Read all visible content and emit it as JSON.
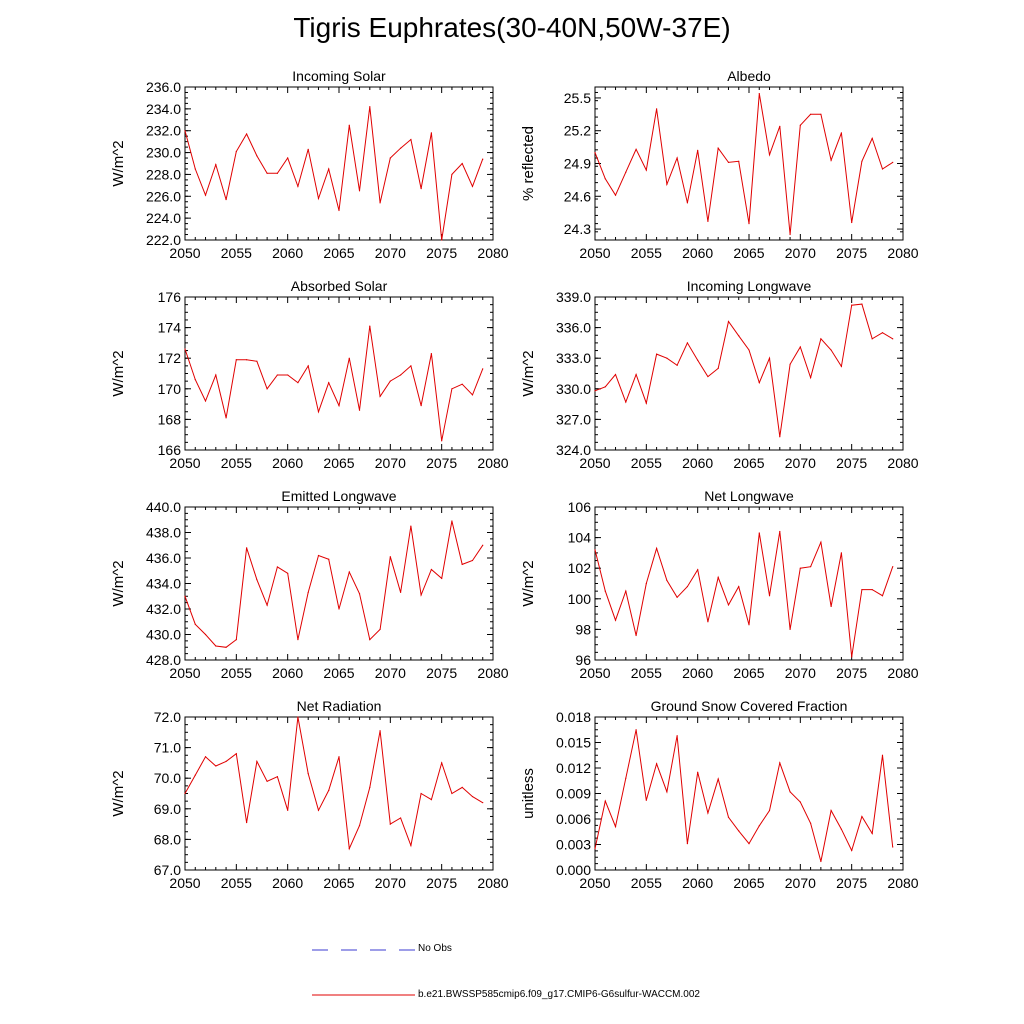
{
  "title": "Tigris Euphrates(30-40N,50W-37E)",
  "legend": {
    "obs_label": "No Obs",
    "obs_color": "#3b3bd0",
    "model_label": "b.e21.BWSSP585cmip6.f09_g17.CMIP6-G6sulfur-WACCM.002",
    "model_color": "#e00000"
  },
  "chart_data": [
    {
      "type": "line",
      "title": "Incoming Solar",
      "ylabel": "W/m^2",
      "xlim": [
        2050,
        2080
      ],
      "ylim": [
        222,
        236
      ],
      "xticks": [
        "2050",
        "2055",
        "2060",
        "2065",
        "2070",
        "2075",
        "2080"
      ],
      "yticks": [
        "222.0",
        "224.0",
        "226.0",
        "228.0",
        "230.0",
        "232.0",
        "234.0",
        "236.0"
      ],
      "x": [
        2050,
        2051,
        2052,
        2053,
        2054,
        2055,
        2056,
        2057,
        2058,
        2059,
        2060,
        2061,
        2062,
        2063,
        2064,
        2065,
        2066,
        2067,
        2068,
        2069,
        2070,
        2071,
        2072,
        2073,
        2074,
        2075,
        2076,
        2077,
        2078,
        2079
      ],
      "values": [
        232.0,
        228.5,
        226.1,
        228.9,
        225.7,
        230.1,
        231.7,
        229.7,
        228.1,
        228.1,
        229.5,
        226.9,
        230.3,
        225.8,
        228.5,
        224.7,
        232.5,
        226.5,
        234.2,
        225.4,
        229.5,
        230.4,
        231.2,
        226.7,
        231.8,
        222.0,
        228.0,
        229.0,
        226.9,
        229.4
      ]
    },
    {
      "type": "line",
      "title": "Albedo",
      "ylabel": "% reflected",
      "xlim": [
        2050,
        2080
      ],
      "ylim": [
        24.2,
        25.6
      ],
      "xticks": [
        "2050",
        "2055",
        "2060",
        "2065",
        "2070",
        "2075",
        "2080"
      ],
      "yticks": [
        "24.3",
        "24.6",
        "24.9",
        "25.2",
        "25.5"
      ],
      "x": [
        2050,
        2051,
        2052,
        2053,
        2054,
        2055,
        2056,
        2057,
        2058,
        2059,
        2060,
        2061,
        2062,
        2063,
        2064,
        2065,
        2066,
        2067,
        2068,
        2069,
        2070,
        2071,
        2072,
        2073,
        2074,
        2075,
        2076,
        2077,
        2078,
        2079
      ],
      "values": [
        25.0,
        24.76,
        24.61,
        24.82,
        25.03,
        24.84,
        25.4,
        24.71,
        24.95,
        24.54,
        25.02,
        24.37,
        25.04,
        24.91,
        24.92,
        24.35,
        25.54,
        24.98,
        25.24,
        24.25,
        25.25,
        25.35,
        25.35,
        24.93,
        25.18,
        24.36,
        24.92,
        25.13,
        24.85,
        24.91
      ]
    },
    {
      "type": "line",
      "title": "Absorbed Solar",
      "ylabel": "W/m^2",
      "xlim": [
        2050,
        2080
      ],
      "ylim": [
        166,
        176
      ],
      "xticks": [
        "2050",
        "2055",
        "2060",
        "2065",
        "2070",
        "2075",
        "2080"
      ],
      "yticks": [
        "166",
        "168",
        "170",
        "172",
        "174",
        "176"
      ],
      "x": [
        2050,
        2051,
        2052,
        2053,
        2054,
        2055,
        2056,
        2057,
        2058,
        2059,
        2060,
        2061,
        2062,
        2063,
        2064,
        2065,
        2066,
        2067,
        2068,
        2069,
        2070,
        2071,
        2072,
        2073,
        2074,
        2075,
        2076,
        2077,
        2078,
        2079
      ],
      "values": [
        172.6,
        170.6,
        169.2,
        170.9,
        168.1,
        171.9,
        171.9,
        171.8,
        170.0,
        170.9,
        170.9,
        170.4,
        171.5,
        168.5,
        170.4,
        168.9,
        172.0,
        168.6,
        174.1,
        169.5,
        170.5,
        170.9,
        171.5,
        168.9,
        172.3,
        166.6,
        170.0,
        170.3,
        169.6,
        171.3
      ]
    },
    {
      "type": "line",
      "title": "Incoming Longwave",
      "ylabel": "W/m^2",
      "xlim": [
        2050,
        2080
      ],
      "ylim": [
        324,
        339
      ],
      "xticks": [
        "2050",
        "2055",
        "2060",
        "2065",
        "2070",
        "2075",
        "2080"
      ],
      "yticks": [
        "324.0",
        "327.0",
        "330.0",
        "333.0",
        "336.0",
        "339.0"
      ],
      "x": [
        2050,
        2051,
        2052,
        2053,
        2054,
        2055,
        2056,
        2057,
        2058,
        2059,
        2060,
        2061,
        2062,
        2063,
        2064,
        2065,
        2066,
        2067,
        2068,
        2069,
        2070,
        2071,
        2072,
        2073,
        2074,
        2075,
        2076,
        2077,
        2078,
        2079
      ],
      "values": [
        329.8,
        330.2,
        331.4,
        328.7,
        331.4,
        328.6,
        333.4,
        333.0,
        332.3,
        334.5,
        332.8,
        331.2,
        332.0,
        336.6,
        335.2,
        333.8,
        330.6,
        333.0,
        325.3,
        332.4,
        334.1,
        331.1,
        334.9,
        333.8,
        332.2,
        338.2,
        338.3,
        334.9,
        335.5,
        334.9
      ]
    },
    {
      "type": "line",
      "title": "Emitted Longwave",
      "ylabel": "W/m^2",
      "xlim": [
        2050,
        2080
      ],
      "ylim": [
        428,
        440
      ],
      "xticks": [
        "2050",
        "2055",
        "2060",
        "2065",
        "2070",
        "2075",
        "2080"
      ],
      "yticks": [
        "428.0",
        "430.0",
        "432.0",
        "434.0",
        "436.0",
        "438.0",
        "440.0"
      ],
      "x": [
        2050,
        2051,
        2052,
        2053,
        2054,
        2055,
        2056,
        2057,
        2058,
        2059,
        2060,
        2061,
        2062,
        2063,
        2064,
        2065,
        2066,
        2067,
        2068,
        2069,
        2070,
        2071,
        2072,
        2073,
        2074,
        2075,
        2076,
        2077,
        2078,
        2079
      ],
      "values": [
        433.0,
        430.8,
        430.0,
        429.1,
        429.0,
        429.6,
        436.8,
        434.3,
        432.3,
        435.3,
        434.8,
        429.6,
        433.3,
        436.2,
        435.9,
        432.0,
        434.9,
        433.2,
        429.6,
        430.4,
        436.1,
        433.3,
        438.5,
        433.1,
        435.1,
        434.4,
        438.9,
        435.5,
        435.8,
        437.0
      ]
    },
    {
      "type": "line",
      "title": "Net Longwave",
      "ylabel": "W/m^2",
      "xlim": [
        2050,
        2080
      ],
      "ylim": [
        96,
        106
      ],
      "xticks": [
        "2050",
        "2055",
        "2060",
        "2065",
        "2070",
        "2075",
        "2080"
      ],
      "yticks": [
        "96",
        "98",
        "100",
        "102",
        "104",
        "106"
      ],
      "x": [
        2050,
        2051,
        2052,
        2053,
        2054,
        2055,
        2056,
        2057,
        2058,
        2059,
        2060,
        2061,
        2062,
        2063,
        2064,
        2065,
        2066,
        2067,
        2068,
        2069,
        2070,
        2071,
        2072,
        2073,
        2074,
        2075,
        2076,
        2077,
        2078,
        2079
      ],
      "values": [
        103.2,
        100.5,
        98.6,
        100.5,
        97.6,
        101.0,
        103.3,
        101.2,
        100.1,
        100.8,
        101.9,
        98.5,
        101.4,
        99.6,
        100.8,
        98.3,
        104.3,
        100.2,
        104.4,
        98.0,
        102.0,
        102.1,
        103.7,
        99.5,
        103.0,
        96.2,
        100.6,
        100.6,
        100.2,
        102.1
      ]
    },
    {
      "type": "line",
      "title": "Net Radiation",
      "ylabel": "W/m^2",
      "xlim": [
        2050,
        2080
      ],
      "ylim": [
        67,
        72
      ],
      "xticks": [
        "2050",
        "2055",
        "2060",
        "2065",
        "2070",
        "2075",
        "2080"
      ],
      "yticks": [
        "67.0",
        "68.0",
        "69.0",
        "70.0",
        "71.0",
        "72.0"
      ],
      "x": [
        2050,
        2051,
        2052,
        2053,
        2054,
        2055,
        2056,
        2057,
        2058,
        2059,
        2060,
        2061,
        2062,
        2063,
        2064,
        2065,
        2066,
        2067,
        2068,
        2069,
        2070,
        2071,
        2072,
        2073,
        2074,
        2075,
        2076,
        2077,
        2078,
        2079
      ],
      "values": [
        69.5,
        70.1,
        70.7,
        70.4,
        70.55,
        70.8,
        68.55,
        70.55,
        69.9,
        70.05,
        68.95,
        72.0,
        70.15,
        68.95,
        69.6,
        70.7,
        67.7,
        68.45,
        69.7,
        71.55,
        68.5,
        68.7,
        67.8,
        69.5,
        69.3,
        70.5,
        69.5,
        69.7,
        69.4,
        69.2
      ]
    },
    {
      "type": "line",
      "title": "Ground Snow Covered Fraction",
      "ylabel": "unitless",
      "xlim": [
        2050,
        2080
      ],
      "ylim": [
        0,
        0.018
      ],
      "xticks": [
        "2050",
        "2055",
        "2060",
        "2065",
        "2070",
        "2075",
        "2080"
      ],
      "yticks": [
        "0.000",
        "0.003",
        "0.006",
        "0.009",
        "0.012",
        "0.015",
        "0.018"
      ],
      "x": [
        2050,
        2051,
        2052,
        2053,
        2054,
        2055,
        2056,
        2057,
        2058,
        2059,
        2060,
        2061,
        2062,
        2063,
        2064,
        2065,
        2066,
        2067,
        2068,
        2069,
        2070,
        2071,
        2072,
        2073,
        2074,
        2075,
        2076,
        2077,
        2078,
        2079
      ],
      "values": [
        0.0025,
        0.0081,
        0.0051,
        0.0108,
        0.0165,
        0.0082,
        0.0125,
        0.0092,
        0.0158,
        0.0031,
        0.0115,
        0.0067,
        0.0107,
        0.0062,
        0.0046,
        0.0031,
        0.0052,
        0.007,
        0.0126,
        0.0092,
        0.008,
        0.0055,
        0.001,
        0.007,
        0.0048,
        0.0023,
        0.0063,
        0.0043,
        0.0135,
        0.0027
      ]
    }
  ]
}
